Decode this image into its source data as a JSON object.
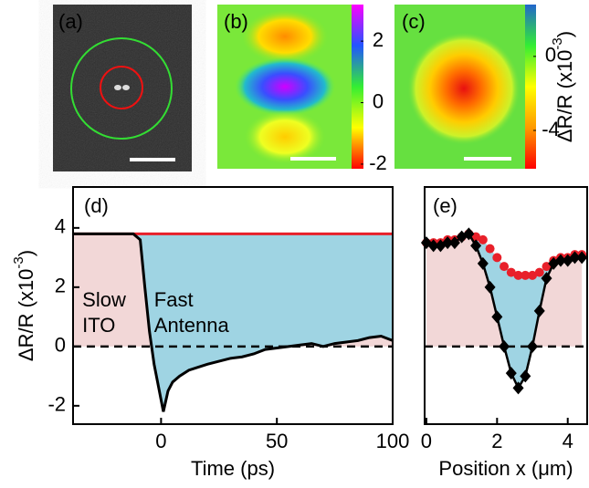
{
  "chart_data": [
    {
      "type": "image",
      "title": "(a)"
    },
    {
      "type": "heatmap",
      "title": "(b)",
      "ylim": [
        -2.15,
        3.19
      ],
      "yticks": [
        -2,
        0,
        2
      ],
      "colors": [
        "#ff0000",
        "#ffff00",
        "#33ee33",
        "#2255ff",
        "#ff00ff"
      ]
    },
    {
      "type": "heatmap",
      "title": "(c)",
      "ylim": [
        -6.07,
        2.8
      ],
      "yticks": [
        -4,
        0
      ],
      "colors": [
        "#ff0000",
        "#ff9900",
        "#ffff00",
        "#33ee33",
        "#2266cc"
      ],
      "y_label": {
        "text": "ΔR/R (x10",
        "sup": "-3",
        "end": ")"
      }
    },
    {
      "type": "line",
      "title": "(d)",
      "x_label": "Time (ps)",
      "y_label": {
        "text": "ΔR/R (x10",
        "sup": "-3",
        "end": ")"
      },
      "xlim": [
        -38,
        100
      ],
      "xticks": [
        0,
        50,
        100
      ],
      "ylim": [
        -2.62,
        5.38
      ],
      "yticks": [
        -2,
        0,
        2,
        4
      ],
      "annotations": [
        {
          "x": -34,
          "lines": [
            "Slow",
            "ITO"
          ]
        },
        {
          "x": -3,
          "lines": [
            "Fast",
            "Antenna"
          ]
        }
      ],
      "fill_colors": [
        "#f2d7d7",
        "#9fd4e3"
      ],
      "series": [
        {
          "color": "#e8202a",
          "x": [
            -38,
            100
          ],
          "values": [
            3.8,
            3.8
          ]
        },
        {
          "color": "#000000",
          "x": [
            -38,
            -30,
            -20,
            -12,
            -9,
            -7,
            -5,
            -3,
            -1,
            1,
            3,
            5,
            8,
            12,
            16,
            20,
            25,
            30,
            35,
            40,
            45,
            50,
            55,
            60,
            65,
            70,
            75,
            80,
            85,
            90,
            95,
            100
          ],
          "values": [
            3.8,
            3.8,
            3.8,
            3.8,
            3.6,
            2.0,
            0.5,
            -0.6,
            -1.4,
            -2.2,
            -1.5,
            -1.2,
            -1.0,
            -0.8,
            -0.7,
            -0.6,
            -0.5,
            -0.4,
            -0.35,
            -0.25,
            -0.1,
            -0.05,
            0.0,
            0.05,
            0.1,
            0.0,
            0.1,
            0.15,
            0.2,
            0.3,
            0.35,
            0.2
          ]
        }
      ]
    },
    {
      "type": "scatter",
      "title": "(e)",
      "x_label": "Position x (μm)",
      "xlim": [
        -0.05,
        4.55
      ],
      "xticks": [
        0,
        2,
        4
      ],
      "ylim": [
        -2.62,
        5.38
      ],
      "fill_colors": [
        "#f2d7d7",
        "#9fd4e3"
      ],
      "series": [
        {
          "color": "#e8202a",
          "marker": "circle",
          "x": [
            0,
            0.2,
            0.4,
            0.6,
            0.8,
            1.0,
            1.2,
            1.4,
            1.6,
            1.8,
            2.0,
            2.2,
            2.4,
            2.6,
            2.8,
            3.0,
            3.2,
            3.4,
            3.6,
            3.8,
            4.0,
            4.2,
            4.4
          ],
          "values": [
            3.5,
            3.5,
            3.5,
            3.6,
            3.6,
            3.7,
            3.8,
            3.7,
            3.6,
            3.3,
            3.0,
            2.7,
            2.5,
            2.4,
            2.4,
            2.4,
            2.5,
            2.7,
            2.9,
            3.0,
            3.0,
            3.1,
            3.1
          ]
        },
        {
          "color": "#000000",
          "marker": "diamond",
          "x": [
            0,
            0.2,
            0.4,
            0.6,
            0.8,
            1.0,
            1.2,
            1.4,
            1.6,
            1.8,
            2.0,
            2.2,
            2.4,
            2.6,
            2.8,
            3.0,
            3.2,
            3.4,
            3.6,
            3.8,
            4.0,
            4.2,
            4.4
          ],
          "values": [
            3.5,
            3.4,
            3.4,
            3.5,
            3.5,
            3.7,
            3.8,
            3.4,
            2.8,
            2.0,
            1.0,
            0.0,
            -0.9,
            -1.4,
            -1.0,
            0.0,
            1.2,
            2.3,
            2.8,
            2.9,
            2.9,
            3.0,
            3.0
          ]
        }
      ]
    }
  ]
}
